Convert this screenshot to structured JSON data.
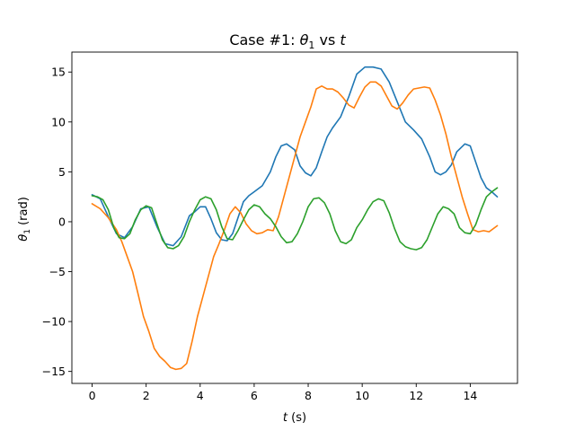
{
  "chart_data": {
    "type": "line",
    "title_prefix": "Case #1: ",
    "title_symbol": "θ",
    "title_subscript": "1",
    "title_suffix": " vs ",
    "title_var": "t",
    "xlabel_var": "t",
    "xlabel_unit": " (s)",
    "ylabel_symbol": "θ",
    "ylabel_subscript": "1",
    "ylabel_unit": " (rad)",
    "xlim": [
      -0.75,
      15.75
    ],
    "ylim": [
      -16.2,
      17.0
    ],
    "xticks": [
      0,
      2,
      4,
      6,
      8,
      10,
      12,
      14
    ],
    "yticks": [
      -15,
      -10,
      -5,
      0,
      5,
      10,
      15
    ],
    "ytick_labels": [
      "−15",
      "−10",
      "−5",
      "0",
      "5",
      "10",
      "15"
    ],
    "grid": false,
    "legend": "none",
    "series": [
      {
        "color": "#1f77b4",
        "x": [
          0,
          0.3,
          0.6,
          0.9,
          1.2,
          1.5,
          1.8,
          2.1,
          2.4,
          2.7,
          3.0,
          3.3,
          3.6,
          3.8,
          4.0,
          4.2,
          4.4,
          4.6,
          4.8,
          5.0,
          5.2,
          5.4,
          5.6,
          5.8,
          6.0,
          6.3,
          6.6,
          6.8,
          7.0,
          7.2,
          7.5,
          7.7,
          7.9,
          8.1,
          8.3,
          8.5,
          8.7,
          8.9,
          9.2,
          9.5,
          9.8,
          10.1,
          10.4,
          10.7,
          11.0,
          11.3,
          11.6,
          11.9,
          12.2,
          12.5,
          12.7,
          12.9,
          13.1,
          13.3,
          13.5,
          13.8,
          14.0,
          14.2,
          14.4,
          14.6,
          14.8,
          15.0
        ],
        "y": [
          2.7,
          2.3,
          0.5,
          -1.2,
          -1.6,
          -0.5,
          1.3,
          1.5,
          -0.5,
          -2.2,
          -2.4,
          -1.5,
          0.6,
          1.0,
          1.5,
          1.5,
          0.3,
          -1.1,
          -1.8,
          -1.9,
          -1.2,
          0.4,
          2.0,
          2.6,
          3.0,
          3.6,
          5.0,
          6.5,
          7.6,
          7.8,
          7.2,
          5.6,
          4.9,
          4.6,
          5.4,
          7.0,
          8.5,
          9.4,
          10.5,
          12.5,
          14.8,
          15.5,
          15.5,
          15.3,
          14.0,
          12.0,
          10.0,
          9.2,
          8.3,
          6.5,
          5.0,
          4.7,
          5.0,
          5.7,
          7.0,
          7.8,
          7.6,
          6.0,
          4.4,
          3.4,
          3.0,
          2.5
        ]
      },
      {
        "color": "#ff7f0e",
        "x": [
          0,
          0.3,
          0.6,
          0.9,
          1.1,
          1.3,
          1.5,
          1.7,
          1.9,
          2.1,
          2.3,
          2.5,
          2.7,
          2.9,
          3.1,
          3.3,
          3.5,
          3.7,
          3.9,
          4.1,
          4.3,
          4.5,
          4.7,
          4.9,
          5.1,
          5.3,
          5.5,
          5.7,
          5.9,
          6.1,
          6.3,
          6.5,
          6.7,
          6.9,
          7.1,
          7.3,
          7.5,
          7.7,
          7.9,
          8.1,
          8.3,
          8.5,
          8.7,
          8.9,
          9.1,
          9.3,
          9.5,
          9.7,
          9.9,
          10.1,
          10.3,
          10.5,
          10.7,
          10.9,
          11.1,
          11.3,
          11.5,
          11.7,
          11.9,
          12.1,
          12.3,
          12.5,
          12.7,
          12.9,
          13.1,
          13.3,
          13.5,
          13.7,
          13.9,
          14.1,
          14.3,
          14.5,
          14.7,
          15.0
        ],
        "y": [
          1.8,
          1.3,
          0.4,
          -0.8,
          -2.0,
          -3.5,
          -5.0,
          -7.2,
          -9.5,
          -11.0,
          -12.7,
          -13.5,
          -14.0,
          -14.6,
          -14.8,
          -14.7,
          -14.2,
          -12.0,
          -9.5,
          -7.5,
          -5.5,
          -3.5,
          -2.2,
          -0.8,
          0.8,
          1.5,
          0.9,
          -0.2,
          -0.9,
          -1.2,
          -1.1,
          -0.8,
          -0.9,
          0.5,
          2.5,
          4.5,
          6.5,
          8.5,
          10.0,
          11.5,
          13.3,
          13.6,
          13.3,
          13.3,
          13.0,
          12.4,
          11.7,
          11.4,
          12.5,
          13.5,
          14.0,
          14.0,
          13.6,
          12.6,
          11.6,
          11.3,
          11.9,
          12.7,
          13.3,
          13.4,
          13.5,
          13.4,
          12.2,
          10.7,
          8.8,
          6.5,
          4.5,
          2.5,
          0.8,
          -0.8,
          -1.0,
          -0.9,
          -1.0,
          -0.4
        ]
      },
      {
        "color": "#2ca02c",
        "x": [
          0,
          0.2,
          0.4,
          0.6,
          0.8,
          1.0,
          1.2,
          1.4,
          1.6,
          1.8,
          2.0,
          2.2,
          2.4,
          2.6,
          2.8,
          3.0,
          3.2,
          3.4,
          3.6,
          3.8,
          4.0,
          4.2,
          4.4,
          4.6,
          4.8,
          5.0,
          5.2,
          5.4,
          5.6,
          5.8,
          6.0,
          6.2,
          6.4,
          6.6,
          6.8,
          7.0,
          7.2,
          7.4,
          7.6,
          7.8,
          8.0,
          8.2,
          8.4,
          8.6,
          8.8,
          9.0,
          9.2,
          9.4,
          9.6,
          9.8,
          10.0,
          10.2,
          10.4,
          10.6,
          10.8,
          11.0,
          11.2,
          11.4,
          11.6,
          11.8,
          12.0,
          12.2,
          12.4,
          12.6,
          12.8,
          13.0,
          13.2,
          13.4,
          13.6,
          13.8,
          14.0,
          14.2,
          14.4,
          14.6,
          14.8,
          15.0
        ],
        "y": [
          2.6,
          2.5,
          2.2,
          1.2,
          -0.6,
          -1.6,
          -1.7,
          -1.2,
          0.2,
          1.2,
          1.6,
          1.4,
          -0.2,
          -1.8,
          -2.6,
          -2.7,
          -2.4,
          -1.5,
          0.0,
          1.2,
          2.2,
          2.5,
          2.3,
          1.2,
          -0.5,
          -1.7,
          -1.8,
          -0.9,
          0.2,
          1.2,
          1.7,
          1.5,
          0.8,
          0.3,
          -0.5,
          -1.5,
          -2.1,
          -2.0,
          -1.2,
          0.0,
          1.5,
          2.3,
          2.4,
          1.9,
          0.8,
          -0.9,
          -2.0,
          -2.2,
          -1.8,
          -0.6,
          0.2,
          1.2,
          2.0,
          2.3,
          2.1,
          0.9,
          -0.7,
          -2.0,
          -2.5,
          -2.7,
          -2.8,
          -2.6,
          -1.8,
          -0.5,
          0.8,
          1.5,
          1.3,
          0.8,
          -0.6,
          -1.1,
          -1.2,
          -0.3,
          1.2,
          2.5,
          3.0,
          3.4
        ]
      }
    ]
  }
}
